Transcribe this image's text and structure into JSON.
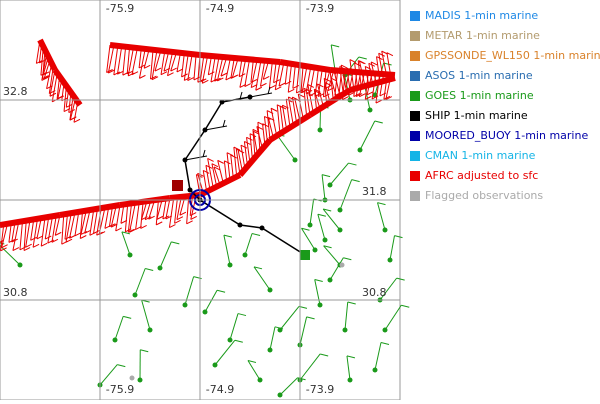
{
  "map": {
    "top_lon_labels": [
      "-75.9",
      "-74.9",
      "-73.9"
    ],
    "bottom_lon_labels": [
      "-75.9",
      "-74.9",
      "-73.9"
    ],
    "left_lat_labels": [
      "32.8",
      "30.8"
    ],
    "right_lat_labels": [
      "31.8",
      "30.8"
    ]
  },
  "legend": [
    {
      "label": "MADIS 1-min marine",
      "color": "#1e88e5"
    },
    {
      "label": "METAR 1-min marine",
      "color": "#b39b6e"
    },
    {
      "label": "GPSSONDE_WL150 1-min marine",
      "color": "#d9822b"
    },
    {
      "label": "ASOS 1-min marine",
      "color": "#2a6db0"
    },
    {
      "label": "GOES 1-min marine",
      "color": "#1a9a1a"
    },
    {
      "label": "SHIP 1-min marine",
      "color": "#000000"
    },
    {
      "label": "MOORED_BUOY 1-min marine",
      "color": "#0000a8"
    },
    {
      "label": "CMAN 1-min marine",
      "color": "#14b4e6"
    },
    {
      "label": "AFRC adjusted to sfc",
      "color": "#e80000"
    },
    {
      "label": "Flagged observations",
      "color": "#aaaaaa"
    }
  ]
}
